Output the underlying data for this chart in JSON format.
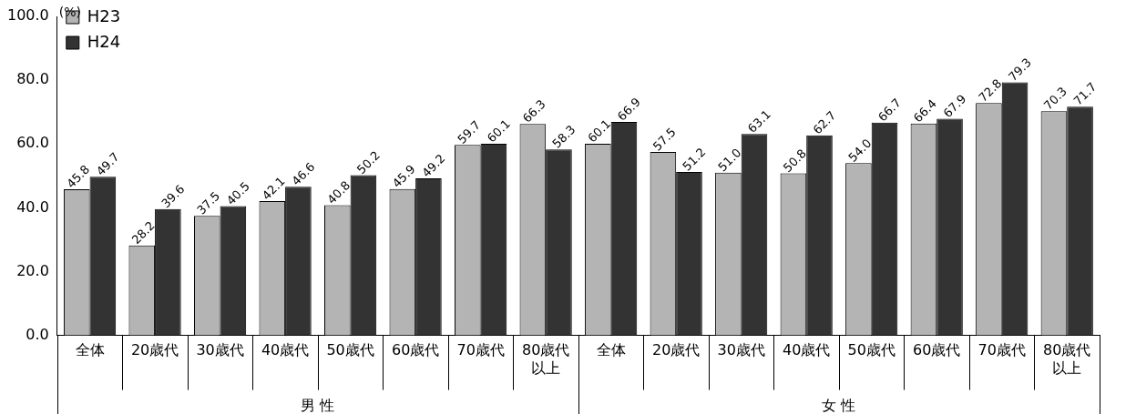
{
  "chart_data": {
    "type": "bar",
    "ylabel": "(%)",
    "categories": [
      "全体",
      "20歳代",
      "30歳代",
      "40歳代",
      "50歳代",
      "60歳代",
      "70歳代",
      "80歳代以上",
      "全体",
      "20歳代",
      "30歳代",
      "40歳代",
      "50歳代",
      "60歳代",
      "70歳代",
      "80歳代以上"
    ],
    "series": [
      {
        "name": "H23",
        "color": "#b4b4b4",
        "values": [
          45.8,
          28.2,
          37.5,
          42.1,
          40.8,
          45.9,
          59.7,
          66.3,
          60.1,
          57.5,
          51.0,
          50.8,
          54.0,
          66.4,
          72.8,
          70.3
        ],
        "value_labels": [
          "45.8",
          "28.2",
          "37.5",
          "42.1",
          "40.8",
          "45.9",
          "59.7",
          "66.3",
          "60.1",
          "57.5",
          "51.0",
          "50.8",
          "54.0",
          "66.4",
          "72.8",
          "70.3"
        ]
      },
      {
        "name": "H24",
        "color": "#333333",
        "values": [
          49.7,
          39.6,
          40.5,
          46.6,
          50.2,
          49.2,
          60.1,
          58.3,
          66.9,
          51.2,
          63.1,
          62.7,
          66.7,
          67.9,
          79.3,
          71.7
        ],
        "value_labels": [
          "49.7",
          "39.6",
          "40.5",
          "46.6",
          "50.2",
          "49.2",
          "60.1",
          "58.3",
          "66.9",
          "51.2",
          "63.1",
          "62.7",
          "66.7",
          "67.9",
          "79.3",
          "71.7"
        ]
      }
    ],
    "ylim": [
      0,
      100
    ],
    "yticks": [
      {
        "value": 0,
        "label": "0.0"
      },
      {
        "value": 20,
        "label": "20.0"
      },
      {
        "value": 40,
        "label": "40.0"
      },
      {
        "value": 60,
        "label": "60.0"
      },
      {
        "value": 80,
        "label": "80.0"
      },
      {
        "value": 100,
        "label": "100.0"
      }
    ],
    "grid": false,
    "legend": "top left",
    "annotations": [
      "男 性",
      "女 性"
    ]
  }
}
